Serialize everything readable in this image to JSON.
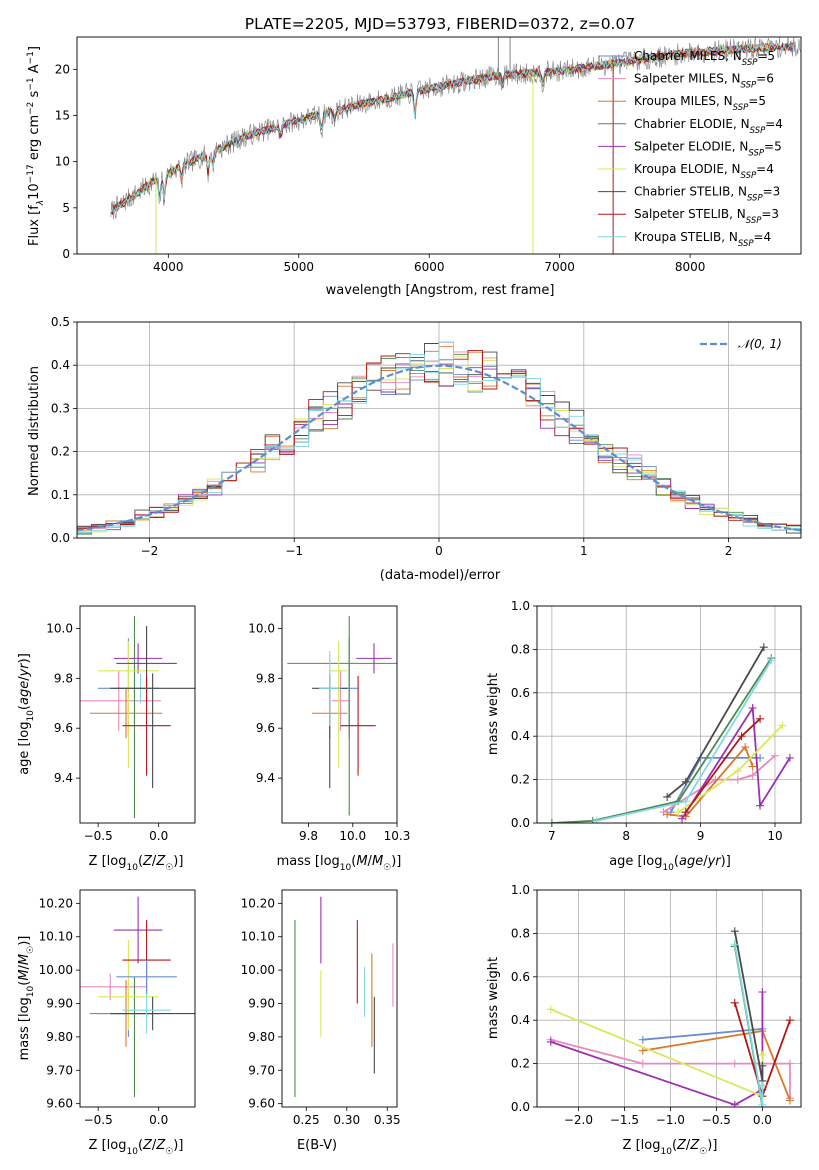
{
  "title": "PLATE=2205, MJD=53793, FIBERID=0372, z=0.07",
  "colors": {
    "Chabrier MILES": "#6a8dd0",
    "Salpeter MILES": "#e88ac0",
    "Kroupa MILES": "#d9782a",
    "Chabrier ELODIE": "#4f8a4f",
    "Salpeter ELODIE": "#9b30b0",
    "Kroupa ELODIE": "#d8e85a",
    "Chabrier STELIB": "#4a4a4a",
    "Salpeter STELIB": "#b01818",
    "Kroupa STELIB": "#80d8e0",
    "data": "#808080",
    "normal": "#5b8fd0",
    "grid": "#b0b0b0"
  },
  "chart_data": [
    {
      "id": "spectrum",
      "type": "line",
      "xlabel": "wavelength [Angstrom, rest frame]",
      "ylabel": "Flux [f_λ10^-17 erg cm^-2 s^-1 A^-1]",
      "xlim": [
        3300,
        8850
      ],
      "ylim": [
        0,
        23.5
      ],
      "xticks": [
        4000,
        5000,
        6000,
        7000,
        8000
      ],
      "yticks": [
        0,
        5,
        10,
        15,
        20
      ],
      "grid": false,
      "legend": "right",
      "continuum": {
        "x": [
          3550,
          3700,
          3900,
          4100,
          4300,
          4600,
          5000,
          5500,
          6000,
          6500,
          7000,
          7500,
          8000,
          8500,
          8850
        ],
        "y": [
          4.5,
          6.0,
          8.0,
          9.5,
          10.8,
          12.8,
          14.5,
          16.3,
          17.9,
          19.3,
          19.8,
          20.8,
          21.8,
          22.3,
          22.5
        ]
      },
      "series": [
        {
          "name": "Chabrier MILES",
          "nssp": "5"
        },
        {
          "name": "Salpeter MILES",
          "nssp": "6"
        },
        {
          "name": "Kroupa MILES",
          "nssp": "5"
        },
        {
          "name": "Chabrier ELODIE",
          "nssp": "4"
        },
        {
          "name": "Salpeter ELODIE",
          "nssp": "5"
        },
        {
          "name": "Kroupa ELODIE",
          "nssp": "4"
        },
        {
          "name": "Chabrier STELIB",
          "nssp": "3"
        },
        {
          "name": "Salpeter STELIB",
          "nssp": "3"
        },
        {
          "name": "Kroupa STELIB",
          "nssp": "4"
        }
      ]
    },
    {
      "id": "residuals",
      "type": "histogram",
      "xlabel": "(data-model)/error",
      "ylabel": "Normed distribution",
      "xlim": [
        -2.5,
        2.5
      ],
      "ylim": [
        0,
        0.5
      ],
      "xticks": [
        -2,
        -1,
        0,
        1,
        2
      ],
      "yticks": [
        0.0,
        0.1,
        0.2,
        0.3,
        0.4,
        0.5
      ],
      "grid": true,
      "legend": "top-right",
      "normal_label": "𝒩(0, 1)"
    },
    {
      "id": "age_vs_Z",
      "type": "scatter",
      "xlabel": "Z [log₁₀(Z/Z☉)]",
      "ylabel": "age  [log₁₀(age/yr)]",
      "xlim": [
        -0.65,
        0.3
      ],
      "ylim": [
        9.22,
        10.09
      ],
      "xticks": [
        -0.5,
        0.0
      ],
      "yticks": [
        9.4,
        9.6,
        9.8,
        10.0
      ],
      "points": [
        {
          "s": "Chabrier MILES",
          "x": -0.25,
          "xerr": [
            0.25,
            0.25
          ],
          "y": 9.76,
          "yerr": [
            0.2,
            0.2
          ]
        },
        {
          "s": "Salpeter MILES",
          "x": -0.33,
          "xerr": [
            0.35,
            0.35
          ],
          "y": 9.71,
          "yerr": [
            0.12,
            0.12
          ]
        },
        {
          "s": "Kroupa MILES",
          "x": -0.27,
          "xerr": [
            0.3,
            0.3
          ],
          "y": 9.66,
          "yerr": [
            0.1,
            0.1
          ]
        },
        {
          "s": "Chabrier ELODIE",
          "x": -0.2,
          "xerr": [
            0.15,
            0.15
          ],
          "y": 9.76,
          "yerr": [
            0.52,
            0.29
          ]
        },
        {
          "s": "Salpeter ELODIE",
          "x": -0.17,
          "xerr": [
            0.2,
            0.2
          ],
          "y": 9.88,
          "yerr": [
            0.06,
            0.06
          ]
        },
        {
          "s": "Kroupa ELODIE",
          "x": -0.25,
          "xerr": [
            0.25,
            0.25
          ],
          "y": 9.83,
          "yerr": [
            0.39,
            0.12
          ]
        },
        {
          "s": "Chabrier STELIB",
          "x": -0.1,
          "xerr": [
            0.25,
            0.25
          ],
          "y": 9.86,
          "yerr": [
            0.15,
            0.15
          ]
        },
        {
          "s": "Salpeter STELIB",
          "x": -0.1,
          "xerr": [
            0.2,
            0.2
          ],
          "y": 9.61,
          "yerr": [
            0.2,
            0.2
          ]
        },
        {
          "s": "Kroupa STELIB",
          "x": -0.15,
          "xerr": [
            0.15,
            0.15
          ],
          "y": 9.76,
          "yerr": [
            0.06,
            0.06
          ]
        },
        {
          "s": "Chabrier STELIB",
          "x": -0.05,
          "xerr": [
            0.35,
            0.35
          ],
          "y": 9.76,
          "yerr": [
            0.4,
            0.06
          ]
        }
      ]
    },
    {
      "id": "age_vs_mass",
      "type": "scatter",
      "xlabel": "mass [log₁₀(M/M☉)]",
      "ylabel": "",
      "xlim": [
        9.6,
        10.25
      ],
      "ylim": [
        9.22,
        10.09
      ],
      "xticks": [
        9.75,
        10.0,
        10.25
      ],
      "yticks": [
        9.4,
        9.6,
        9.8,
        10.0
      ],
      "points": [
        {
          "s": "Chabrier MILES",
          "x": 9.98,
          "xerr": [
            0.05,
            0.05
          ],
          "y": 9.76,
          "yerr": [
            0.2,
            0.2
          ]
        },
        {
          "s": "Salpeter MILES",
          "x": 9.93,
          "xerr": [
            0.05,
            0.05
          ],
          "y": 9.71,
          "yerr": [
            0.12,
            0.12
          ]
        },
        {
          "s": "Kroupa MILES",
          "x": 9.87,
          "xerr": [
            0.1,
            0.1
          ],
          "y": 9.66,
          "yerr": [
            0.1,
            0.1
          ]
        },
        {
          "s": "Chabrier ELODIE",
          "x": 9.98,
          "xerr": [
            0.35,
            0.35
          ],
          "y": 9.86,
          "yerr": [
            0.61,
            0.19
          ]
        },
        {
          "s": "Salpeter ELODIE",
          "x": 10.12,
          "xerr": [
            0.1,
            0.1
          ],
          "y": 9.88,
          "yerr": [
            0.06,
            0.06
          ]
        },
        {
          "s": "Kroupa ELODIE",
          "x": 9.92,
          "xerr": [
            0.05,
            0.05
          ],
          "y": 9.83,
          "yerr": [
            0.39,
            0.12
          ]
        },
        {
          "s": "Chabrier STELIB",
          "x": 9.87,
          "xerr": [
            0.1,
            0.1
          ],
          "y": 9.76,
          "yerr": [
            0.4,
            0.06
          ]
        },
        {
          "s": "Salpeter STELIB",
          "x": 10.03,
          "xerr": [
            0.1,
            0.1
          ],
          "y": 9.61,
          "yerr": [
            0.2,
            0.2
          ]
        },
        {
          "s": "Kroupa STELIB",
          "x": 9.87,
          "xerr": [
            0.06,
            0.06
          ],
          "y": 9.76,
          "yerr": [
            0.15,
            0.15
          ]
        }
      ]
    },
    {
      "id": "weight_vs_age",
      "type": "line",
      "xlabel": "age  [log₁₀(age/yr)]",
      "ylabel": "mass weight",
      "xlim": [
        6.8,
        10.35
      ],
      "ylim": [
        0,
        1.0
      ],
      "xticks": [
        7,
        8,
        9,
        10
      ],
      "yticks": [
        0.0,
        0.2,
        0.4,
        0.6,
        0.8,
        1.0
      ],
      "grid": true,
      "series": [
        {
          "s": "Chabrier MILES",
          "x": [
            8.6,
            9.0,
            9.8
          ],
          "y": [
            0.05,
            0.3,
            0.3
          ]
        },
        {
          "s": "Salpeter MILES",
          "x": [
            8.5,
            9.2,
            9.5,
            9.7,
            10.0
          ],
          "y": [
            0.05,
            0.2,
            0.2,
            0.22,
            0.31
          ]
        },
        {
          "s": "Kroupa MILES",
          "x": [
            8.55,
            8.8,
            9.6,
            9.7
          ],
          "y": [
            0.04,
            0.03,
            0.35,
            0.26
          ]
        },
        {
          "s": "Chabrier ELODIE",
          "x": [
            7.0,
            7.55,
            8.7,
            9.95
          ],
          "y": [
            0.0,
            0.01,
            0.1,
            0.76
          ]
        },
        {
          "s": "Salpeter ELODIE",
          "x": [
            8.75,
            9.7,
            9.8,
            10.2
          ],
          "y": [
            0.02,
            0.53,
            0.08,
            0.3
          ]
        },
        {
          "s": "Kroupa ELODIE",
          "x": [
            8.7,
            9.5,
            10.1
          ],
          "y": [
            0.05,
            0.24,
            0.45
          ]
        },
        {
          "s": "Chabrier STELIB",
          "x": [
            8.55,
            8.8,
            9.85
          ],
          "y": [
            0.12,
            0.19,
            0.81
          ]
        },
        {
          "s": "Salpeter STELIB",
          "x": [
            8.8,
            9.55,
            9.8
          ],
          "y": [
            0.05,
            0.4,
            0.48
          ]
        },
        {
          "s": "Kroupa STELIB",
          "x": [
            7.6,
            8.8,
            9.95
          ],
          "y": [
            0.01,
            0.1,
            0.75
          ]
        }
      ]
    },
    {
      "id": "mass_vs_Z",
      "type": "scatter",
      "xlabel": "Z [log₁₀(Z/Z☉)]",
      "ylabel": "mass [log₁₀(M/M☉)]",
      "xlim": [
        -0.65,
        0.3
      ],
      "ylim": [
        9.59,
        10.24
      ],
      "xticks": [
        -0.5,
        0.0
      ],
      "yticks": [
        9.6,
        9.7,
        9.8,
        9.9,
        10.0,
        10.1,
        10.2
      ],
      "points": [
        {
          "s": "Chabrier MILES",
          "x": -0.25,
          "xerr": [
            0.25,
            0.25
          ],
          "y": 9.87,
          "yerr": [
            0.07,
            0.1
          ]
        },
        {
          "s": "Salpeter MILES",
          "x": -0.4,
          "xerr": [
            0.3,
            0.3
          ],
          "y": 9.95,
          "yerr": [
            0.04,
            0.04
          ]
        },
        {
          "s": "Kroupa MILES",
          "x": -0.27,
          "xerr": [
            0.3,
            0.3
          ],
          "y": 9.87,
          "yerr": [
            0.1,
            0.1
          ]
        },
        {
          "s": "Chabrier ELODIE",
          "x": -0.2,
          "xerr": [
            0.15,
            0.15
          ],
          "y": 9.87,
          "yerr": [
            0.25,
            0.11
          ]
        },
        {
          "s": "Salpeter ELODIE",
          "x": -0.17,
          "xerr": [
            0.2,
            0.2
          ],
          "y": 10.12,
          "yerr": [
            0.1,
            0.1
          ]
        },
        {
          "s": "Kroupa ELODIE",
          "x": -0.25,
          "xerr": [
            0.25,
            0.25
          ],
          "y": 9.92,
          "yerr": [
            0.1,
            0.17
          ]
        },
        {
          "s": "Chabrier STELIB",
          "x": -0.05,
          "xerr": [
            0.35,
            0.35
          ],
          "y": 9.87,
          "yerr": [
            0.05,
            0.05
          ]
        },
        {
          "s": "Salpeter STELIB",
          "x": -0.1,
          "xerr": [
            0.2,
            0.2
          ],
          "y": 10.03,
          "yerr": [
            0.1,
            0.12
          ]
        },
        {
          "s": "Kroupa STELIB",
          "x": -0.1,
          "xerr": [
            0.2,
            0.2
          ],
          "y": 9.88,
          "yerr": [
            0.07,
            0.07
          ]
        },
        {
          "s": "Chabrier MILES",
          "x": -0.1,
          "xerr": [
            0.25,
            0.25
          ],
          "y": 9.98,
          "yerr": [
            0.05,
            0.05
          ]
        }
      ]
    },
    {
      "id": "mass_vs_ebv",
      "type": "scatter",
      "xlabel": "E(B-V)",
      "ylabel": "",
      "xlim": [
        0.22,
        0.362
      ],
      "ylim": [
        9.59,
        10.24
      ],
      "xticks": [
        0.25,
        0.3,
        0.35
      ],
      "yticks": [
        9.6,
        9.7,
        9.8,
        9.9,
        10.0,
        10.1,
        10.2
      ],
      "points": [
        {
          "s": "Chabrier ELODIE",
          "x": 0.236,
          "y": 9.87,
          "yerr": [
            0.25,
            0.28
          ]
        },
        {
          "s": "Salpeter ELODIE",
          "x": 0.268,
          "y": 10.12,
          "yerr": [
            0.1,
            0.1
          ]
        },
        {
          "s": "Kroupa ELODIE",
          "x": 0.268,
          "y": 9.92,
          "yerr": [
            0.12,
            0.08
          ]
        },
        {
          "s": "Salpeter STELIB",
          "x": 0.313,
          "y": 10.03,
          "yerr": [
            0.13,
            0.12
          ]
        },
        {
          "s": "Kroupa STELIB",
          "x": 0.322,
          "y": 9.93,
          "yerr": [
            0.07,
            0.08
          ]
        },
        {
          "s": "Kroupa MILES",
          "x": 0.331,
          "y": 9.91,
          "yerr": [
            0.14,
            0.14
          ]
        },
        {
          "s": "Chabrier STELIB",
          "x": 0.334,
          "y": 9.8,
          "yerr": [
            0.11,
            0.12
          ]
        },
        {
          "s": "Salpeter MILES",
          "x": 0.357,
          "y": 9.98,
          "yerr": [
            0.09,
            0.1
          ]
        }
      ]
    },
    {
      "id": "weight_vs_Z",
      "type": "line",
      "xlabel": "Z [log₁₀(Z/Z☉)]",
      "ylabel": "mass weight",
      "xlim": [
        -2.45,
        0.42
      ],
      "ylim": [
        0,
        1.0
      ],
      "xticks": [
        -2.0,
        -1.5,
        -1.0,
        -0.5,
        0.0
      ],
      "yticks": [
        0.0,
        0.2,
        0.4,
        0.6,
        0.8,
        1.0
      ],
      "grid": true,
      "series": [
        {
          "s": "Chabrier MILES",
          "x": [
            -1.3,
            0.0
          ],
          "y": [
            0.31,
            0.36
          ]
        },
        {
          "s": "Salpeter MILES",
          "x": [
            -2.3,
            -1.3,
            -0.3,
            0.3,
            0.3
          ],
          "y": [
            0.31,
            0.2,
            0.2,
            0.2,
            0.04
          ]
        },
        {
          "s": "Kroupa MILES",
          "x": [
            -1.3,
            0.0,
            0.3
          ],
          "y": [
            0.26,
            0.35,
            0.03
          ]
        },
        {
          "s": "Chabrier ELODIE",
          "x": [
            -0.3,
            0.0
          ],
          "y": [
            0.74,
            0.0
          ]
        },
        {
          "s": "Salpeter ELODIE",
          "x": [
            -2.3,
            -0.3,
            0.0,
            0.0
          ],
          "y": [
            0.3,
            0.01,
            0.08,
            0.53
          ]
        },
        {
          "s": "Kroupa ELODIE",
          "x": [
            -2.3,
            0.0,
            0.0
          ],
          "y": [
            0.45,
            0.05,
            0.24
          ]
        },
        {
          "s": "Chabrier STELIB",
          "x": [
            -0.3,
            0.0,
            0.0
          ],
          "y": [
            0.81,
            0.12,
            0.19
          ]
        },
        {
          "s": "Salpeter STELIB",
          "x": [
            -0.3,
            0.0,
            0.3
          ],
          "y": [
            0.48,
            0.05,
            0.4
          ]
        },
        {
          "s": "Kroupa STELIB",
          "x": [
            -0.3,
            0.0,
            0.0
          ],
          "y": [
            0.75,
            0.01,
            0.1
          ]
        }
      ]
    }
  ]
}
